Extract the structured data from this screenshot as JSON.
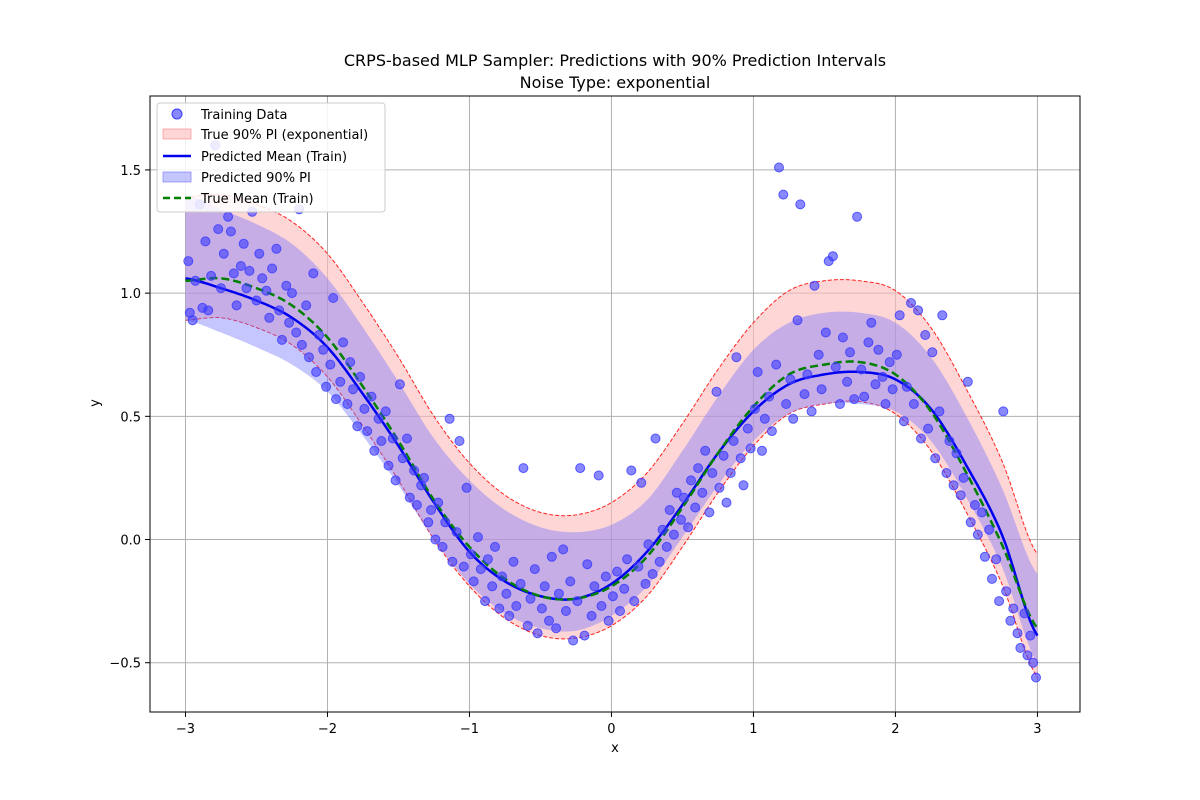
{
  "chart_data": {
    "type": "scatter",
    "title": "CRPS-based MLP Sampler: Predictions with 90% Prediction Intervals",
    "subtitle": "Noise Type: exponential",
    "xlabel": "x",
    "ylabel": "y",
    "xlim": [
      -3.25,
      3.3
    ],
    "ylim": [
      -0.7,
      1.8
    ],
    "xticks": [
      -3,
      -2,
      -1,
      0,
      1,
      2,
      3
    ],
    "xtick_labels": [
      "−3",
      "−2",
      "−1",
      "0",
      "1",
      "2",
      "3"
    ],
    "yticks": [
      -0.5,
      0.0,
      0.5,
      1.0,
      1.5
    ],
    "ytick_labels": [
      "−0.5",
      "0.0",
      "0.5",
      "1.0",
      "1.5"
    ],
    "grid": true,
    "legend_position": "top-left",
    "legend": [
      {
        "label": "Training Data",
        "kind": "marker",
        "color": "#4040ff"
      },
      {
        "label": "True 90% PI (exponential)",
        "kind": "patch",
        "color": "#ffcccc"
      },
      {
        "label": "Predicted Mean (Train)",
        "kind": "line",
        "color": "#0000ee"
      },
      {
        "label": "Predicted 90% PI",
        "kind": "patch",
        "color": "#c8c8ff"
      },
      {
        "label": "True Mean (Train)",
        "kind": "dashed",
        "color": "#008000"
      }
    ],
    "colors": {
      "points": "#3a3aff",
      "true_pi_fill": "#ffbbbb",
      "true_pi_edge": "#ff2020",
      "pred_mean": "#0000ee",
      "pred_pi_fill": "#7070ff",
      "true_mean": "#008000"
    },
    "x_grid": [
      -3.0,
      -2.75,
      -2.5,
      -2.25,
      -2.0,
      -1.75,
      -1.5,
      -1.25,
      -1.0,
      -0.75,
      -0.5,
      -0.25,
      0.0,
      0.25,
      0.5,
      0.75,
      1.0,
      1.25,
      1.5,
      1.75,
      2.0,
      2.25,
      2.5,
      2.75,
      3.0
    ],
    "series": [
      {
        "name": "True Mean (Train)",
        "y": [
          1.05,
          1.06,
          1.02,
          0.95,
          0.82,
          0.62,
          0.4,
          0.16,
          -0.03,
          -0.16,
          -0.23,
          -0.24,
          -0.19,
          -0.07,
          0.13,
          0.35,
          0.54,
          0.67,
          0.71,
          0.72,
          0.67,
          0.52,
          0.27,
          -0.02,
          -0.36
        ]
      },
      {
        "name": "Predicted Mean (Train)",
        "y": [
          1.06,
          1.02,
          0.97,
          0.9,
          0.78,
          0.59,
          0.38,
          0.15,
          -0.05,
          -0.17,
          -0.23,
          -0.24,
          -0.18,
          -0.05,
          0.14,
          0.35,
          0.52,
          0.63,
          0.67,
          0.68,
          0.65,
          0.53,
          0.3,
          0.02,
          -0.39
        ]
      },
      {
        "name": "True 90% PI lower",
        "y": [
          0.89,
          0.9,
          0.86,
          0.79,
          0.66,
          0.46,
          0.24,
          0.0,
          -0.19,
          -0.32,
          -0.39,
          -0.4,
          -0.35,
          -0.23,
          -0.03,
          0.19,
          0.38,
          0.51,
          0.55,
          0.56,
          0.51,
          0.36,
          0.11,
          -0.18,
          -0.56
        ]
      },
      {
        "name": "True 90% PI upper",
        "y": [
          1.39,
          1.4,
          1.36,
          1.29,
          1.16,
          0.96,
          0.74,
          0.5,
          0.31,
          0.18,
          0.11,
          0.1,
          0.15,
          0.27,
          0.47,
          0.69,
          0.88,
          1.01,
          1.05,
          1.05,
          1.01,
          0.86,
          0.61,
          0.32,
          -0.06
        ]
      },
      {
        "name": "Predicted 90% PI lower",
        "y": [
          0.89,
          0.84,
          0.78,
          0.71,
          0.6,
          0.42,
          0.22,
          0.0,
          -0.18,
          -0.3,
          -0.36,
          -0.37,
          -0.31,
          -0.19,
          0.01,
          0.22,
          0.4,
          0.51,
          0.55,
          0.55,
          0.52,
          0.4,
          0.17,
          -0.11,
          -0.5
        ]
      },
      {
        "name": "Predicted 90% PI upper",
        "y": [
          1.4,
          1.34,
          1.28,
          1.2,
          1.06,
          0.86,
          0.64,
          0.41,
          0.24,
          0.12,
          0.05,
          0.03,
          0.06,
          0.16,
          0.36,
          0.58,
          0.77,
          0.88,
          0.92,
          0.92,
          0.88,
          0.74,
          0.5,
          0.21,
          -0.14
        ]
      }
    ],
    "points": [
      [
        -2.98,
        1.13
      ],
      [
        -2.97,
        0.92
      ],
      [
        -2.95,
        0.89
      ],
      [
        -2.93,
        1.05
      ],
      [
        -2.9,
        1.36
      ],
      [
        -2.88,
        0.94
      ],
      [
        -2.86,
        1.21
      ],
      [
        -2.84,
        0.93
      ],
      [
        -2.82,
        1.07
      ],
      [
        -2.79,
        1.6
      ],
      [
        -2.77,
        1.26
      ],
      [
        -2.75,
        1.02
      ],
      [
        -2.73,
        1.16
      ],
      [
        -2.7,
        1.31
      ],
      [
        -2.68,
        1.25
      ],
      [
        -2.66,
        1.08
      ],
      [
        -2.64,
        0.95
      ],
      [
        -2.61,
        1.11
      ],
      [
        -2.59,
        1.2
      ],
      [
        -2.57,
        1.02
      ],
      [
        -2.55,
        1.09
      ],
      [
        -2.53,
        1.33
      ],
      [
        -2.5,
        0.97
      ],
      [
        -2.48,
        1.16
      ],
      [
        -2.46,
        1.06
      ],
      [
        -2.43,
        1.01
      ],
      [
        -2.41,
        0.9
      ],
      [
        -2.39,
        1.1
      ],
      [
        -2.36,
        1.18
      ],
      [
        -2.34,
        0.93
      ],
      [
        -2.32,
        0.81
      ],
      [
        -2.29,
        1.03
      ],
      [
        -2.27,
        0.88
      ],
      [
        -2.25,
        1.0
      ],
      [
        -2.22,
        0.84
      ],
      [
        -2.2,
        1.34
      ],
      [
        -2.18,
        0.79
      ],
      [
        -2.15,
        0.95
      ],
      [
        -2.13,
        0.74
      ],
      [
        -2.1,
        1.08
      ],
      [
        -2.08,
        0.68
      ],
      [
        -2.06,
        0.83
      ],
      [
        -2.03,
        0.77
      ],
      [
        -2.01,
        0.62
      ],
      [
        -1.98,
        0.71
      ],
      [
        -1.96,
        0.98
      ],
      [
        -1.94,
        0.57
      ],
      [
        -1.91,
        0.64
      ],
      [
        -1.89,
        0.8
      ],
      [
        -1.86,
        0.55
      ],
      [
        -1.84,
        0.72
      ],
      [
        -1.82,
        0.61
      ],
      [
        -1.79,
        0.46
      ],
      [
        -1.77,
        0.66
      ],
      [
        -1.74,
        0.53
      ],
      [
        -1.72,
        0.44
      ],
      [
        -1.69,
        0.58
      ],
      [
        -1.67,
        0.36
      ],
      [
        -1.64,
        0.49
      ],
      [
        -1.62,
        0.4
      ],
      [
        -1.59,
        0.52
      ],
      [
        -1.57,
        0.3
      ],
      [
        -1.54,
        0.41
      ],
      [
        -1.52,
        0.24
      ],
      [
        -1.49,
        0.63
      ],
      [
        -1.47,
        0.33
      ],
      [
        -1.44,
        0.41
      ],
      [
        -1.42,
        0.17
      ],
      [
        -1.39,
        0.28
      ],
      [
        -1.37,
        0.14
      ],
      [
        -1.34,
        0.22
      ],
      [
        -1.32,
        0.25
      ],
      [
        -1.29,
        0.07
      ],
      [
        -1.27,
        0.12
      ],
      [
        -1.24,
        0.0
      ],
      [
        -1.22,
        0.15
      ],
      [
        -1.19,
        -0.03
      ],
      [
        -1.17,
        0.07
      ],
      [
        -1.14,
        0.49
      ],
      [
        -1.12,
        -0.09
      ],
      [
        -1.09,
        0.03
      ],
      [
        -1.07,
        0.4
      ],
      [
        -1.04,
        -0.11
      ],
      [
        -1.02,
        0.21
      ],
      [
        -0.99,
        -0.06
      ],
      [
        -0.97,
        -0.17
      ],
      [
        -0.94,
        0.01
      ],
      [
        -0.92,
        -0.12
      ],
      [
        -0.89,
        -0.25
      ],
      [
        -0.87,
        -0.08
      ],
      [
        -0.84,
        -0.19
      ],
      [
        -0.82,
        -0.03
      ],
      [
        -0.79,
        -0.28
      ],
      [
        -0.77,
        -0.15
      ],
      [
        -0.74,
        -0.22
      ],
      [
        -0.72,
        -0.31
      ],
      [
        -0.69,
        -0.09
      ],
      [
        -0.67,
        -0.27
      ],
      [
        -0.64,
        -0.18
      ],
      [
        -0.62,
        0.29
      ],
      [
        -0.59,
        -0.35
      ],
      [
        -0.57,
        -0.24
      ],
      [
        -0.54,
        -0.12
      ],
      [
        -0.52,
        -0.38
      ],
      [
        -0.49,
        -0.28
      ],
      [
        -0.47,
        -0.19
      ],
      [
        -0.44,
        -0.33
      ],
      [
        -0.42,
        -0.07
      ],
      [
        -0.39,
        -0.36
      ],
      [
        -0.37,
        -0.22
      ],
      [
        -0.34,
        -0.04
      ],
      [
        -0.32,
        -0.29
      ],
      [
        -0.29,
        -0.17
      ],
      [
        -0.27,
        -0.41
      ],
      [
        -0.24,
        -0.25
      ],
      [
        -0.22,
        0.29
      ],
      [
        -0.19,
        -0.39
      ],
      [
        -0.17,
        -0.1
      ],
      [
        -0.14,
        -0.31
      ],
      [
        -0.12,
        -0.19
      ],
      [
        -0.09,
        0.26
      ],
      [
        -0.07,
        -0.27
      ],
      [
        -0.04,
        -0.15
      ],
      [
        -0.02,
        -0.33
      ],
      [
        0.01,
        -0.23
      ],
      [
        0.04,
        -0.13
      ],
      [
        0.06,
        -0.29
      ],
      [
        0.09,
        -0.2
      ],
      [
        0.11,
        -0.08
      ],
      [
        0.14,
        0.28
      ],
      [
        0.16,
        -0.25
      ],
      [
        0.19,
        -0.11
      ],
      [
        0.21,
        0.23
      ],
      [
        0.24,
        -0.18
      ],
      [
        0.26,
        -0.02
      ],
      [
        0.29,
        -0.14
      ],
      [
        0.31,
        0.41
      ],
      [
        0.34,
        -0.09
      ],
      [
        0.36,
        0.04
      ],
      [
        0.39,
        -0.03
      ],
      [
        0.41,
        0.12
      ],
      [
        0.44,
        0.02
      ],
      [
        0.46,
        0.19
      ],
      [
        0.49,
        0.08
      ],
      [
        0.51,
        0.17
      ],
      [
        0.54,
        0.05
      ],
      [
        0.56,
        0.24
      ],
      [
        0.59,
        0.13
      ],
      [
        0.61,
        0.29
      ],
      [
        0.64,
        0.19
      ],
      [
        0.66,
        0.36
      ],
      [
        0.69,
        0.11
      ],
      [
        0.71,
        0.27
      ],
      [
        0.74,
        0.6
      ],
      [
        0.76,
        0.21
      ],
      [
        0.79,
        0.34
      ],
      [
        0.81,
        0.15
      ],
      [
        0.84,
        0.27
      ],
      [
        0.86,
        0.4
      ],
      [
        0.88,
        0.74
      ],
      [
        0.91,
        0.33
      ],
      [
        0.93,
        0.22
      ],
      [
        0.96,
        0.45
      ],
      [
        0.98,
        0.37
      ],
      [
        1.01,
        0.53
      ],
      [
        1.03,
        0.68
      ],
      [
        1.06,
        0.36
      ],
      [
        1.08,
        0.49
      ],
      [
        1.11,
        0.58
      ],
      [
        1.13,
        0.44
      ],
      [
        1.16,
        0.71
      ],
      [
        1.18,
        1.51
      ],
      [
        1.21,
        1.4
      ],
      [
        1.23,
        0.55
      ],
      [
        1.26,
        0.65
      ],
      [
        1.28,
        0.49
      ],
      [
        1.31,
        0.89
      ],
      [
        1.33,
        1.36
      ],
      [
        1.36,
        0.59
      ],
      [
        1.38,
        0.67
      ],
      [
        1.41,
        0.52
      ],
      [
        1.43,
        1.03
      ],
      [
        1.46,
        0.75
      ],
      [
        1.48,
        0.61
      ],
      [
        1.51,
        0.84
      ],
      [
        1.53,
        1.13
      ],
      [
        1.56,
        1.15
      ],
      [
        1.58,
        0.7
      ],
      [
        1.61,
        0.55
      ],
      [
        1.63,
        0.82
      ],
      [
        1.66,
        0.64
      ],
      [
        1.68,
        0.76
      ],
      [
        1.71,
        0.57
      ],
      [
        1.73,
        1.31
      ],
      [
        1.76,
        0.69
      ],
      [
        1.78,
        0.58
      ],
      [
        1.81,
        0.8
      ],
      [
        1.83,
        0.88
      ],
      [
        1.86,
        0.63
      ],
      [
        1.88,
        0.77
      ],
      [
        1.91,
        0.66
      ],
      [
        1.93,
        0.55
      ],
      [
        1.96,
        0.72
      ],
      [
        1.98,
        0.61
      ],
      [
        2.01,
        0.75
      ],
      [
        2.03,
        0.91
      ],
      [
        2.06,
        0.48
      ],
      [
        2.08,
        0.62
      ],
      [
        2.11,
        0.96
      ],
      [
        2.13,
        0.55
      ],
      [
        2.16,
        0.93
      ],
      [
        2.18,
        0.41
      ],
      [
        2.21,
        0.83
      ],
      [
        2.23,
        0.45
      ],
      [
        2.26,
        0.76
      ],
      [
        2.28,
        0.33
      ],
      [
        2.31,
        0.52
      ],
      [
        2.33,
        0.91
      ],
      [
        2.36,
        0.27
      ],
      [
        2.38,
        0.4
      ],
      [
        2.41,
        0.22
      ],
      [
        2.43,
        0.35
      ],
      [
        2.46,
        0.18
      ],
      [
        2.48,
        0.25
      ],
      [
        2.51,
        0.64
      ],
      [
        2.53,
        0.07
      ],
      [
        2.56,
        0.14
      ],
      [
        2.58,
        0.02
      ],
      [
        2.61,
        0.11
      ],
      [
        2.63,
        -0.07
      ],
      [
        2.66,
        0.04
      ],
      [
        2.68,
        -0.16
      ],
      [
        2.71,
        -0.08
      ],
      [
        2.73,
        -0.25
      ],
      [
        2.76,
        0.52
      ],
      [
        2.78,
        -0.21
      ],
      [
        2.81,
        -0.33
      ],
      [
        2.83,
        -0.28
      ],
      [
        2.86,
        -0.38
      ],
      [
        2.88,
        -0.44
      ],
      [
        2.91,
        -0.3
      ],
      [
        2.93,
        -0.47
      ],
      [
        2.95,
        -0.39
      ],
      [
        2.97,
        -0.5
      ],
      [
        2.99,
        -0.56
      ]
    ]
  }
}
